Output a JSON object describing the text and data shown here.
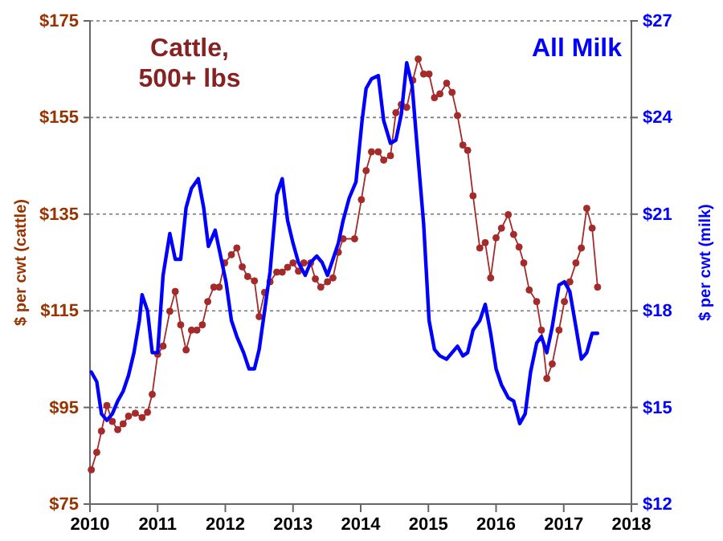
{
  "chart_data": {
    "type": "line",
    "xlim": [
      2010,
      2018
    ],
    "xticks": [
      2010,
      2011,
      2012,
      2013,
      2014,
      2015,
      2016,
      2017,
      2018
    ],
    "ylim": [
      75,
      175
    ],
    "yticks": [
      {
        "value": 75,
        "label": "$75"
      },
      {
        "value": 95,
        "label": "$95"
      },
      {
        "value": 115,
        "label": "$115"
      },
      {
        "value": 135,
        "label": "$135"
      },
      {
        "value": 155,
        "label": "$155"
      },
      {
        "value": 175,
        "label": "$175"
      }
    ],
    "y2lim": [
      12,
      27
    ],
    "y2ticks": [
      {
        "value": 12,
        "label": "$12"
      },
      {
        "value": 15,
        "label": "$15"
      },
      {
        "value": 18,
        "label": "$18"
      },
      {
        "value": 21,
        "label": "$21"
      },
      {
        "value": 24,
        "label": "$24"
      },
      {
        "value": 27,
        "label": "$27"
      }
    ],
    "ylabel": "$ per cwt (cattle)",
    "y2label": "$ per cwt (milk)",
    "grid": "y",
    "line_style": "solid",
    "series": [
      {
        "name": "Cattle, 500+ lbs",
        "color": "#a52a2a",
        "marker": "circle",
        "x": [
          2010.02,
          2010.1,
          2010.17,
          2010.25,
          2010.33,
          2010.41,
          2010.49,
          2010.57,
          2010.67,
          2010.77,
          2010.85,
          2010.92,
          2011.0,
          2011.08,
          2011.18,
          2011.26,
          2011.34,
          2011.42,
          2011.5,
          2011.58,
          2011.66,
          2011.74,
          2011.83,
          2011.91,
          2011.99,
          2012.09,
          2012.17,
          2012.25,
          2012.33,
          2012.43,
          2012.5,
          2012.58,
          2012.66,
          2012.76,
          2012.84,
          2012.92,
          2013.0,
          2013.08,
          2013.16,
          2013.26,
          2013.33,
          2013.41,
          2013.51,
          2013.59,
          2013.67,
          2013.74,
          2013.91,
          2014.01,
          2014.08,
          2014.16,
          2014.26,
          2014.34,
          2014.44,
          2014.52,
          2014.6,
          2014.68,
          2014.77,
          2014.85,
          2014.93,
          2015.01,
          2015.09,
          2015.17,
          2015.27,
          2015.35,
          2015.43,
          2015.51,
          2015.58,
          2015.66,
          2015.76,
          2015.84,
          2015.92,
          2016.0,
          2016.08,
          2016.18,
          2016.26,
          2016.34,
          2016.41,
          2016.49,
          2016.6,
          2016.67,
          2016.75,
          2016.83,
          2016.93,
          2017.01,
          2017.09,
          2017.18,
          2017.26,
          2017.34,
          2017.42,
          2017.5
        ],
        "values": [
          82.1,
          85.7,
          90.1,
          95.4,
          92.1,
          90.4,
          91.6,
          93.2,
          93.8,
          92.9,
          94.0,
          97.7,
          106.0,
          107.7,
          114.9,
          119.0,
          112.1,
          106.9,
          111.0,
          111.0,
          112.1,
          116.9,
          119.9,
          119.9,
          124.9,
          126.6,
          128.0,
          124.1,
          122.1,
          121.2,
          113.8,
          118.8,
          121.0,
          123.0,
          123.0,
          124.0,
          124.9,
          123.2,
          124.9,
          124.9,
          121.6,
          119.9,
          121.0,
          121.8,
          127.1,
          129.9,
          129.9,
          138.0,
          144.0,
          147.9,
          147.9,
          146.2,
          147.1,
          156.0,
          157.7,
          157.1,
          162.7,
          167.1,
          164.0,
          164.0,
          159.1,
          159.9,
          162.1,
          160.2,
          155.4,
          149.3,
          148.2,
          138.8,
          128.0,
          129.1,
          121.8,
          130.1,
          132.1,
          134.9,
          130.8,
          128.2,
          124.9,
          119.3,
          116.9,
          111.0,
          101.0,
          104.0,
          111.0,
          116.9,
          121.0,
          124.9,
          128.0,
          136.2,
          132.1,
          119.9
        ]
      },
      {
        "name": "All Milk",
        "color": "#0000ff",
        "marker": "none",
        "axis": "y2",
        "x": [
          2010.02,
          2010.1,
          2010.17,
          2010.25,
          2010.33,
          2010.41,
          2010.49,
          2010.57,
          2010.65,
          2010.73,
          2010.77,
          2010.85,
          2010.92,
          2011.0,
          2011.08,
          2011.18,
          2011.26,
          2011.34,
          2011.42,
          2011.5,
          2011.6,
          2011.68,
          2011.75,
          2011.85,
          2011.93,
          2012.01,
          2012.09,
          2012.17,
          2012.27,
          2012.35,
          2012.43,
          2012.5,
          2012.58,
          2012.66,
          2012.76,
          2012.84,
          2012.92,
          2013.0,
          2013.08,
          2013.18,
          2013.26,
          2013.35,
          2013.43,
          2013.51,
          2013.59,
          2013.67,
          2013.74,
          2013.83,
          2013.93,
          2014.02,
          2014.08,
          2014.16,
          2014.26,
          2014.34,
          2014.44,
          2014.52,
          2014.6,
          2014.68,
          2014.76,
          2014.83,
          2014.93,
          2015.01,
          2015.09,
          2015.17,
          2015.27,
          2015.35,
          2015.43,
          2015.51,
          2015.58,
          2015.66,
          2015.76,
          2015.84,
          2015.92,
          2016.0,
          2016.08,
          2016.18,
          2016.26,
          2016.35,
          2016.43,
          2016.51,
          2016.6,
          2016.67,
          2016.75,
          2016.83,
          2016.93,
          2017.01,
          2017.09,
          2017.18,
          2017.26,
          2017.34,
          2017.42,
          2017.5
        ],
        "values": [
          16.1,
          15.8,
          14.8,
          14.6,
          14.8,
          15.2,
          15.5,
          16.0,
          16.7,
          17.7,
          18.5,
          18.0,
          16.7,
          16.7,
          19.1,
          20.4,
          19.6,
          19.6,
          21.2,
          21.8,
          22.1,
          21.2,
          20.0,
          20.5,
          19.7,
          18.9,
          17.7,
          17.2,
          16.7,
          16.2,
          16.2,
          16.8,
          18.0,
          19.2,
          21.6,
          22.1,
          20.8,
          20.1,
          19.5,
          19.1,
          19.5,
          19.7,
          19.5,
          19.1,
          19.6,
          20.1,
          20.8,
          21.5,
          22.0,
          23.9,
          24.9,
          25.2,
          25.3,
          23.9,
          23.2,
          23.3,
          24.1,
          25.7,
          25.0,
          23.2,
          20.7,
          17.7,
          16.8,
          16.6,
          16.5,
          16.7,
          16.9,
          16.6,
          16.7,
          17.4,
          17.7,
          18.2,
          17.3,
          16.2,
          15.7,
          15.3,
          15.2,
          14.5,
          14.8,
          16.1,
          17.0,
          17.2,
          16.7,
          17.5,
          18.8,
          18.9,
          18.6,
          17.5,
          16.5,
          16.7,
          17.3,
          17.3
        ]
      }
    ]
  }
}
